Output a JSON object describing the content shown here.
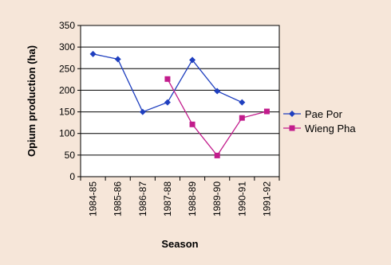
{
  "colors": {
    "page_background": "#f6e6d9",
    "plot_background": "#ffffff",
    "grid": "#000000"
  },
  "chart_data": {
    "type": "line",
    "title": "",
    "xlabel": "Season",
    "ylabel": "Opium production (ha)",
    "categories": [
      "1984-85",
      "1985-86",
      "1986-87",
      "1987-88",
      "1988-89",
      "1989-90",
      "1990-91",
      "1991-92"
    ],
    "ylim": [
      0,
      350
    ],
    "yticks": [
      0,
      50,
      100,
      150,
      200,
      250,
      300,
      350
    ],
    "grid": "horizontal",
    "legend_position": "right",
    "series": [
      {
        "name": "Pae Por",
        "color": "#1f3fbf",
        "marker": "diamond",
        "values": [
          284,
          272,
          150,
          172,
          270,
          198,
          172,
          null
        ]
      },
      {
        "name": "Wieng Pha",
        "color": "#c21c8c",
        "marker": "square",
        "values": [
          null,
          null,
          null,
          226,
          121,
          49,
          136,
          151
        ]
      }
    ]
  }
}
